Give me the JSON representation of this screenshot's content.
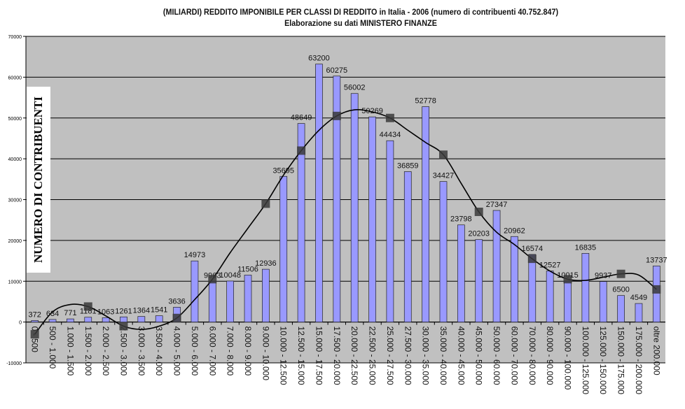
{
  "chart_data": {
    "type": "bar",
    "title": "(MILIARDI) REDDITO IMPONIBILE PER CLASSI DI REDDITO in Italia - 2006 (numero di contribuenti 40.752.847)",
    "subtitle": "Elaborazione su dati MINISTERO FINANZE",
    "ylabel": "NUMERO DI CONTRIBUENTI",
    "xlabel": "",
    "ylim": [
      -10000,
      70000
    ],
    "yticks": [
      -10000,
      0,
      10000,
      20000,
      30000,
      40000,
      50000,
      60000,
      70000
    ],
    "grid": true,
    "categories": [
      "0 - 500",
      "500 - 1.000",
      "1.000 - 1.500",
      "1.500 - 2.000",
      "2.000 - 2.500",
      "2.500 - 3.000",
      "3.000 - 3.500",
      "3.500 - 4.000",
      "4.000 - 5.000",
      "5.000 - 6.000",
      "6.000 - 7.000",
      "7.000 - 8.000",
      "8.000 - 9.000",
      "9.000 - 10.000",
      "10.000 - 12.500",
      "12.500 - 15.000",
      "15.000 - 17.500",
      "17.500 - 20.000",
      "20.000 - 22.500",
      "22.500 - 25.000",
      "25.000 - 27.500",
      "27.500 - 30.000",
      "30.000 - 35.000",
      "35.000 - 40.000",
      "40.000 - 45.000",
      "45.000 - 50.000",
      "50.000 - 60.000",
      "60.000 - 70.000",
      "70.000 - 80.000",
      "80.000 - 90.000",
      "90.000 - 100.000",
      "100.000 - 125.000",
      "125.000 - 150.000",
      "150.000 - 175.000",
      "175.000 - 200.000",
      "oltre 200.000"
    ],
    "values": [
      372,
      634,
      771,
      1181,
      1063,
      1261,
      1364,
      1541,
      3636,
      14973,
      9963,
      10048,
      11506,
      12936,
      35695,
      48649,
      63200,
      60275,
      56002,
      50269,
      44434,
      36859,
      52778,
      34427,
      23798,
      20203,
      27347,
      20962,
      16574,
      12527,
      10015,
      16835,
      9937,
      6500,
      4549,
      13737
    ],
    "trendline": [
      -3000,
      2500,
      4300,
      3800,
      1500,
      -1000,
      -1800,
      -1000,
      1000,
      5500,
      10500,
      17000,
      23000,
      29000,
      36000,
      42000,
      47000,
      50500,
      52000,
      51500,
      50000,
      47000,
      44000,
      41000,
      34000,
      27000,
      22000,
      19000,
      15500,
      12500,
      10500,
      10200,
      11000,
      11800,
      11500,
      8000
    ],
    "colors": {
      "bars": "#9999ff",
      "plot_background": "#c0c0c0",
      "trendline": "#000000"
    }
  }
}
